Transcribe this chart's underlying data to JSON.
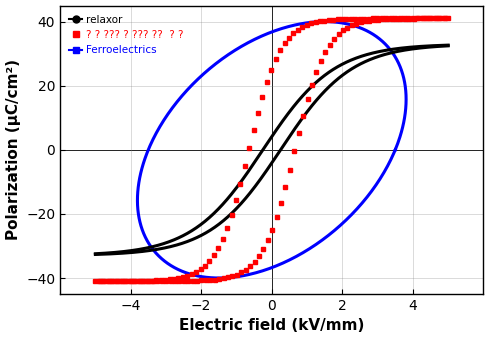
{
  "title": "",
  "xlabel": "Electric field (kV/mm)",
  "ylabel": "Polarization (μC/cm²)",
  "xlim": [
    -6,
    6
  ],
  "ylim": [
    -45,
    45
  ],
  "xticks": [
    -4,
    -2,
    0,
    2,
    4
  ],
  "yticks": [
    -40,
    -20,
    0,
    20,
    40
  ],
  "legend_labels": [
    "relaxor",
    "? ? ??? ? ??? ??  ? ?",
    "Ferroelectrics"
  ],
  "legend_colors": [
    "black",
    "red",
    "blue"
  ],
  "background_color": "#ffffff"
}
